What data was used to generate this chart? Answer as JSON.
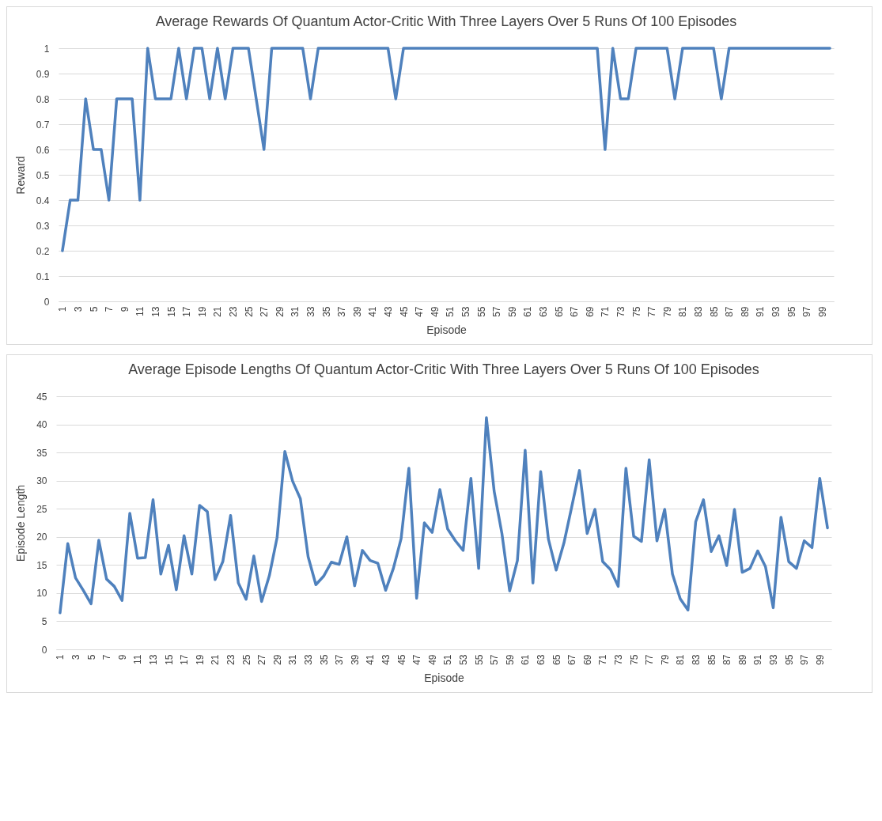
{
  "chart_data": [
    {
      "type": "line",
      "title": "Average Rewards Of Quantum Actor-Critic With Three Layers Over 5 Runs Of 100 Episodes",
      "xlabel": "Episode",
      "ylabel": "Reward",
      "categories": [
        "1",
        null,
        "3",
        null,
        "5",
        null,
        "7",
        null,
        "9",
        null,
        "11",
        null,
        "13",
        null,
        "15",
        null,
        "17",
        null,
        "19",
        null,
        "21",
        null,
        "23",
        null,
        "25",
        null,
        "27",
        null,
        "29",
        null,
        "31",
        null,
        "33",
        null,
        "35",
        null,
        "37",
        null,
        "39",
        null,
        "41",
        null,
        "43",
        null,
        "45",
        null,
        "47",
        null,
        "49",
        null,
        "51",
        null,
        "53",
        null,
        "55",
        null,
        "57",
        null,
        "59",
        null,
        "61",
        null,
        "63",
        null,
        "65",
        null,
        "67",
        null,
        "69",
        null,
        "71",
        null,
        "73",
        null,
        "75",
        null,
        "77",
        null,
        "79",
        null,
        "81",
        null,
        "83",
        null,
        "85",
        null,
        "87",
        null,
        "89",
        null,
        "91",
        null,
        "93",
        null,
        "95",
        null,
        "97",
        null,
        "99",
        null
      ],
      "series": [
        {
          "color": "#4f81bd",
          "values": [
            0.2,
            0.4,
            0.4,
            0.8,
            0.6,
            0.6,
            0.4,
            0.8,
            0.8,
            0.8,
            0.4,
            1,
            0.8,
            0.8,
            0.8,
            1,
            0.8,
            1,
            1,
            0.8,
            1,
            0.8,
            1,
            1,
            1,
            0.8,
            0.6,
            1,
            1,
            1,
            1,
            1,
            0.8,
            1,
            1,
            1,
            1,
            1,
            1,
            1,
            1,
            1,
            1,
            0.8,
            1,
            1,
            1,
            1,
            1,
            1,
            1,
            1,
            1,
            1,
            1,
            1,
            1,
            1,
            1,
            1,
            1,
            1,
            1,
            1,
            1,
            1,
            1,
            1,
            1,
            1,
            0.6,
            1,
            0.8,
            0.8,
            1,
            1,
            1,
            1,
            1,
            0.8,
            1,
            1,
            1,
            1,
            1,
            0.8,
            1,
            1,
            1,
            1,
            1,
            1,
            1,
            1,
            1,
            1,
            1,
            1,
            1,
            1
          ]
        }
      ],
      "ylim": [
        0,
        1
      ],
      "yticks": [
        0,
        0.1,
        0.2,
        0.3,
        0.4,
        0.5,
        0.6,
        0.7,
        0.8,
        0.9,
        1
      ],
      "grid": "y"
    },
    {
      "type": "line",
      "title": "Average Episode Lengths Of Quantum Actor-Critic With Three Layers Over 5 Runs Of 100 Episodes",
      "xlabel": "Episode",
      "ylabel": "Episode Length",
      "categories": [
        "1",
        null,
        "3",
        null,
        "5",
        null,
        "7",
        null,
        "9",
        null,
        "11",
        null,
        "13",
        null,
        "15",
        null,
        "17",
        null,
        "19",
        null,
        "21",
        null,
        "23",
        null,
        "25",
        null,
        "27",
        null,
        "29",
        null,
        "31",
        null,
        "33",
        null,
        "35",
        null,
        "37",
        null,
        "39",
        null,
        "41",
        null,
        "43",
        null,
        "45",
        null,
        "47",
        null,
        "49",
        null,
        "51",
        null,
        "53",
        null,
        "55",
        null,
        "57",
        null,
        "59",
        null,
        "61",
        null,
        "63",
        null,
        "65",
        null,
        "67",
        null,
        "69",
        null,
        "71",
        null,
        "73",
        null,
        "75",
        null,
        "77",
        null,
        "79",
        null,
        "81",
        null,
        "83",
        null,
        "85",
        null,
        "87",
        null,
        "89",
        null,
        "91",
        null,
        "93",
        null,
        "95",
        null,
        "97",
        null,
        "99",
        null
      ],
      "series": [
        {
          "color": "#4f81bd",
          "values": [
            6.5,
            18.8,
            12.7,
            10.5,
            8.1,
            19.4,
            12.5,
            11.2,
            8.7,
            24.2,
            16.2,
            16.3,
            26.6,
            13.4,
            18.5,
            10.6,
            20.2,
            13.4,
            25.6,
            24.5,
            12.4,
            15.6,
            23.8,
            11.8,
            8.9,
            16.6,
            8.5,
            13.1,
            19.9,
            35.2,
            29.9,
            26.8,
            16.5,
            11.5,
            13.0,
            15.5,
            15.1,
            20.0,
            11.3,
            17.6,
            15.8,
            15.3,
            10.5,
            14.4,
            19.7,
            32.2,
            9.1,
            22.5,
            20.8,
            28.4,
            21.4,
            19.3,
            17.6,
            30.4,
            14.4,
            41.2,
            28.1,
            20.6,
            10.4,
            15.8,
            35.4,
            11.8,
            31.6,
            19.6,
            14.1,
            18.9,
            25.3,
            31.8,
            20.6,
            24.9,
            15.6,
            14.2,
            11.2,
            32.2,
            20.1,
            19.2,
            33.7,
            19.3,
            24.9,
            13.4,
            9.0,
            7.0,
            22.7,
            26.6,
            17.4,
            20.2,
            14.9,
            24.9,
            13.7,
            14.4,
            17.5,
            14.7,
            7.4,
            23.5,
            15.6,
            14.4,
            19.3,
            18.1,
            30.4,
            21.6
          ]
        }
      ],
      "ylim": [
        0,
        45
      ],
      "yticks": [
        0,
        5,
        10,
        15,
        20,
        25,
        30,
        35,
        40,
        45
      ],
      "grid": "y"
    }
  ]
}
